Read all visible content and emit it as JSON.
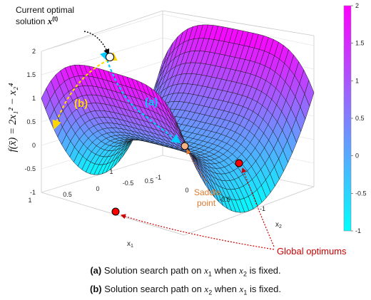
{
  "chart_data": {
    "type": "surface",
    "function": "f(x) = 2x1^2 - x2^4",
    "zlabel": "f(x̄) = 2x₁² − x₂⁴",
    "xlabel": "x1",
    "ylabel": "x2",
    "xlim": [
      -1,
      1
    ],
    "ylim": [
      -1,
      1
    ],
    "zlim": [
      -1,
      2
    ],
    "x_ticks": [
      "1",
      "0.5",
      "0",
      "-0.5",
      "-1"
    ],
    "y_ticks": [
      "-1",
      "-0.5",
      "0",
      "0.5",
      "1"
    ],
    "z_ticks": [
      "2",
      "1.5",
      "1",
      "0.5",
      "0",
      "-0.5",
      "-1"
    ],
    "colorbar": {
      "min": -1,
      "max": 2,
      "ticks": [
        "2",
        "1.5",
        "1",
        "0.5",
        "0",
        "-0.5",
        "-1"
      ],
      "colors": [
        "#00ffff",
        "#ff00ff"
      ]
    },
    "points": [
      {
        "label": "Current optimal solution",
        "x1": -0.85,
        "x2": 0.0,
        "color": "#ffffff"
      },
      {
        "label": "Saddle point",
        "x1": 0.0,
        "x2": 0.0,
        "color": "#f4b183"
      },
      {
        "label": "Global optimum",
        "x1": 0.0,
        "x2": 1.0,
        "color": "#ff0000"
      },
      {
        "label": "Global optimum",
        "x1": 0.0,
        "x2": -1.0,
        "color": "#ff0000"
      }
    ],
    "paths": [
      {
        "label": "(a)",
        "color": "#00ccff"
      },
      {
        "label": "(b)",
        "color": "#ffd700"
      }
    ],
    "grid": true
  },
  "annotations": {
    "current_line1": "Current optimal",
    "current_line2": "solution ",
    "current_var": "x",
    "current_sup": "(t)",
    "path_a": "(a)",
    "path_b": "(b)",
    "saddle1": "Saddle",
    "saddle2": "point",
    "global": "Global optimums"
  },
  "captions": {
    "a_label": "(a)",
    "a_text1": " Solution search path on ",
    "a_var1": "x",
    "a_sub1": "1",
    "a_text2": " when ",
    "a_var2": "x",
    "a_sub2": "2",
    "a_text3": " is fixed.",
    "b_label": "(b)",
    "b_text1": " Solution search path on ",
    "b_var1": "x",
    "b_sub1": "2",
    "b_text2": " when ",
    "b_var2": "x",
    "b_sub2": "1",
    "b_text3": " is fixed."
  }
}
